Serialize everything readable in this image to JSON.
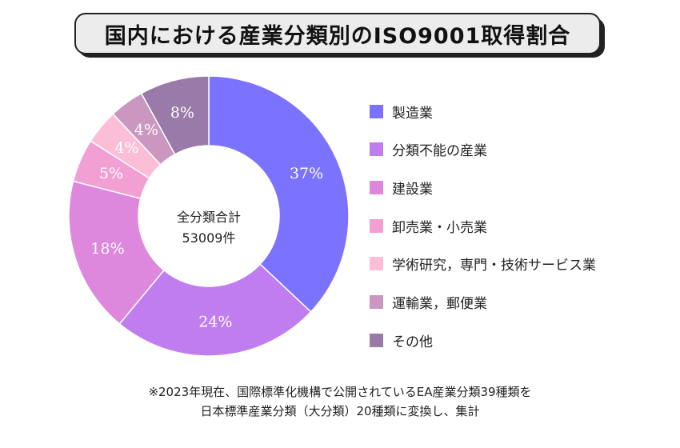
{
  "title": "国内における産業分類別のISO9001取得割合",
  "center_label": {
    "line1": "全分類合計",
    "line2": "53009件"
  },
  "footnote": {
    "line1": "※2023年現在、国際標準化機構で公開されているEA産業分類39種類を",
    "line2": "日本標準産業分類（大分類）20種類に変換し、集計"
  },
  "chart_data": {
    "type": "pie",
    "style": "donut",
    "title": "国内における産業分類別のISO9001取得割合",
    "center_text": [
      "全分類合計",
      "53009件"
    ],
    "legend_position": "right",
    "categories": [
      "製造業",
      "分類不能の産業",
      "建設業",
      "卸売業・小売業",
      "学術研究，専門・技術サービス業",
      "運輸業，郵便業",
      "その他"
    ],
    "values": [
      37,
      24,
      18,
      5,
      4,
      4,
      8
    ],
    "labels": [
      "37%",
      "24%",
      "18%",
      "5%",
      "4%",
      "4%",
      "8%"
    ],
    "colors": [
      "#7b72ff",
      "#c07df0",
      "#dd88dc",
      "#f29fd3",
      "#fcbed6",
      "#c997bf",
      "#9a7aa8"
    ],
    "start_angle": "12 o'clock",
    "direction": "clockwise"
  }
}
